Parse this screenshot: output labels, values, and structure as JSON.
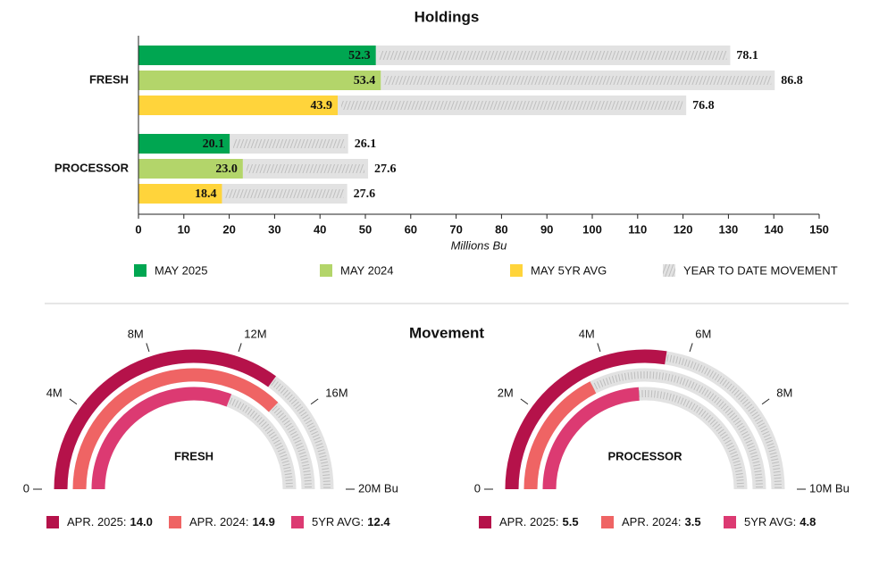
{
  "chart_data": [
    {
      "type": "hbar-stacked",
      "title": "Holdings",
      "xlabel": "Millions Bu",
      "categories": [
        "FRESH",
        "PROCESSOR"
      ],
      "series": [
        {
          "name": "MAY 2025",
          "color": "#00a651",
          "values": [
            52.3,
            20.1
          ],
          "movement": [
            78.1,
            26.1
          ]
        },
        {
          "name": "MAY 2024",
          "color": "#b3d56a",
          "values": [
            53.4,
            23.0
          ],
          "value_labels": [
            "53.4",
            "23.0"
          ],
          "movement": [
            86.8,
            27.6
          ]
        },
        {
          "name": "MAY 5YR AVG",
          "color": "#ffd43b",
          "values": [
            43.9,
            18.4
          ],
          "movement": [
            76.8,
            27.6
          ]
        }
      ],
      "movement_name": "YEAR TO DATE MOVEMENT",
      "movement_color": "#e2e2e2",
      "xlim": [
        0,
        150
      ],
      "xticks": [
        0,
        10,
        20,
        30,
        40,
        50,
        60,
        70,
        80,
        90,
        100,
        110,
        120,
        130,
        140,
        150
      ]
    },
    {
      "type": "gauge",
      "title": "Movement",
      "series": [
        {
          "name": "APR. 2025:",
          "color": "#b5124a"
        },
        {
          "name": "APR. 2024:",
          "color": "#ef6464"
        },
        {
          "name": "5YR AVG:",
          "color": "#dc3a72"
        }
      ],
      "track_color": "#e2e2e2",
      "panels": [
        {
          "label": "FRESH",
          "values": [
            14.0,
            14.9,
            12.4
          ],
          "value_labels": [
            "14.0",
            "14.9",
            "12.4"
          ],
          "lim": [
            0,
            20
          ],
          "ticks": [
            0,
            {
              "value": 4,
              "label": "4M"
            },
            {
              "value": 8,
              "label": "8M"
            },
            {
              "value": 12,
              "label": "12M"
            },
            {
              "value": 16,
              "label": "16M"
            },
            {
              "value": 20,
              "label": "20M Bu"
            }
          ]
        },
        {
          "label": "PROCESSOR",
          "values": [
            5.5,
            3.5,
            4.8
          ],
          "lim": [
            0,
            10
          ],
          "ticks": [
            0,
            {
              "value": 2,
              "label": "2M"
            },
            {
              "value": 4,
              "label": "4M"
            },
            {
              "value": 6,
              "label": "6M"
            },
            {
              "value": 8,
              "label": "8M"
            },
            {
              "value": 10,
              "label": "10M Bu"
            }
          ]
        }
      ]
    }
  ]
}
